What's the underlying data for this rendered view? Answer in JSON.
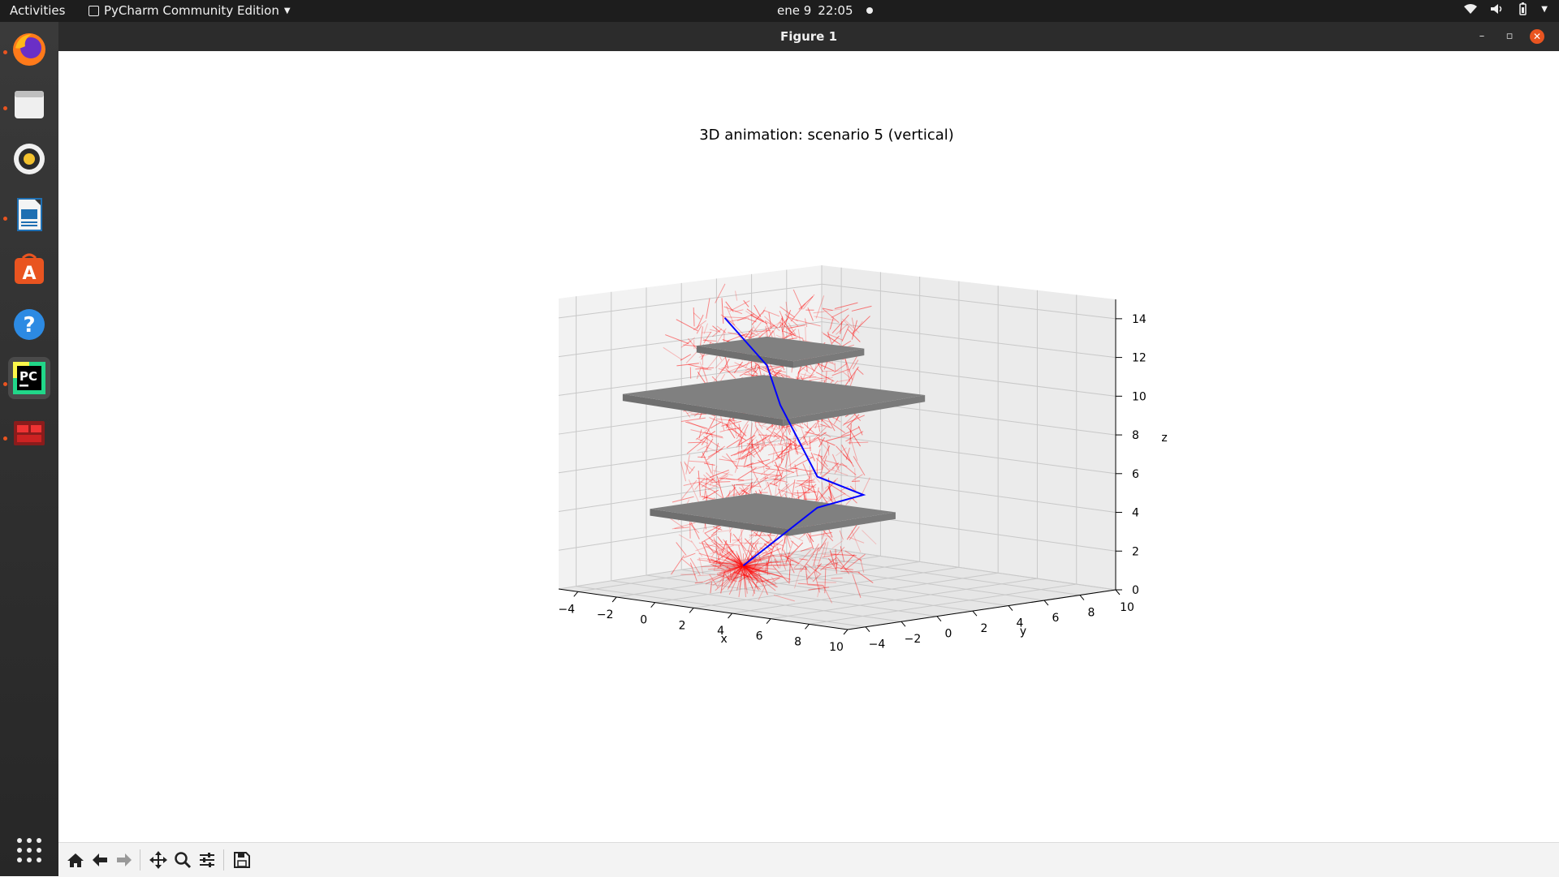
{
  "topbar": {
    "activities": "Activities",
    "app_name": "PyCharm Community Edition",
    "date": "ene 9",
    "time": "22:05"
  },
  "window": {
    "title": "Figure 1"
  },
  "dock": {
    "items": [
      "firefox-icon",
      "files-icon",
      "rhythmbox-icon",
      "writer-icon",
      "software-icon",
      "help-icon",
      "pycharm-icon",
      "terminal-icon",
      "app-grid-icon"
    ]
  },
  "figure": {
    "title": "3D animation: scenario 5 (vertical)"
  },
  "chart_data": {
    "type": "3d-quiver",
    "title": "3D animation: scenario 5 (vertical)",
    "xlabel": "x",
    "ylabel": "y",
    "zlabel": "z",
    "xlim": [
      -5,
      10
    ],
    "ylim": [
      -5,
      10
    ],
    "zlim": [
      0,
      15
    ],
    "xticks": [
      "−4",
      "−2",
      "0",
      "2",
      "4",
      "6",
      "8",
      "10"
    ],
    "yticks": [
      "−4",
      "−2",
      "0",
      "2",
      "4",
      "6",
      "8",
      "10"
    ],
    "zticks": [
      "0",
      "2",
      "4",
      "6",
      "8",
      "10",
      "12",
      "14"
    ],
    "grid": true,
    "series": [
      {
        "type": "quiver",
        "color": "#ff0000"
      },
      {
        "type": "path",
        "color": "#0000ff",
        "points": [
          [
            0,
            0,
            1.2
          ],
          [
            2,
            2,
            4.2
          ],
          [
            3,
            3.5,
            4.8
          ],
          [
            2,
            2,
            5.8
          ],
          [
            1,
            1,
            9.5
          ],
          [
            0.5,
            0.8,
            11.5
          ],
          [
            -0.5,
            -0.5,
            14
          ]
        ]
      },
      {
        "type": "plane",
        "color": "#808080",
        "z": 4
      },
      {
        "type": "plane",
        "color": "#808080",
        "z": 10
      },
      {
        "type": "plane",
        "color": "#808080",
        "z": 12.5
      }
    ]
  }
}
